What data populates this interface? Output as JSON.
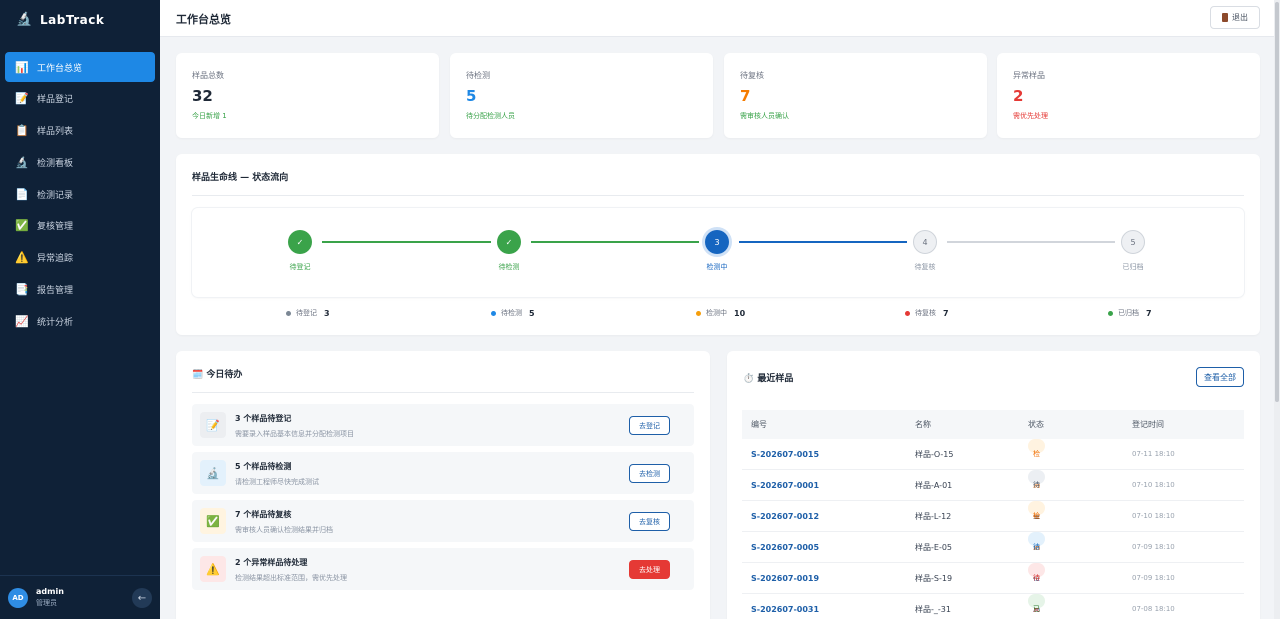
{
  "app": {
    "name": "LabTrack"
  },
  "sidebar": {
    "items": [
      {
        "icon": "📊",
        "label": "工作台总览",
        "active": true,
        "name": "sidebar-item-dashboard"
      },
      {
        "icon": "📝",
        "label": "样品登记",
        "active": false,
        "name": "sidebar-item-sample-register"
      },
      {
        "icon": "📋",
        "label": "样品列表",
        "active": false,
        "name": "sidebar-item-sample-list"
      },
      {
        "icon": "🔬",
        "label": "检测看板",
        "active": false,
        "name": "sidebar-item-test-board"
      },
      {
        "icon": "📄",
        "label": "检测记录",
        "active": false,
        "name": "sidebar-item-test-records"
      },
      {
        "icon": "✅",
        "label": "复核管理",
        "active": false,
        "name": "sidebar-item-review"
      },
      {
        "icon": "⚠️",
        "label": "异常追踪",
        "active": false,
        "name": "sidebar-item-anomaly"
      },
      {
        "icon": "📑",
        "label": "报告管理",
        "active": false,
        "name": "sidebar-item-reports"
      },
      {
        "icon": "📈",
        "label": "统计分析",
        "active": false,
        "name": "sidebar-item-stats"
      }
    ],
    "user": {
      "initials": "AD",
      "name": "admin",
      "role": "管理员",
      "collapse": "←"
    }
  },
  "header": {
    "title": "工作台总览",
    "logout": "退出"
  },
  "stats": [
    {
      "label": "样品总数",
      "value": "32",
      "sub": "今日新增 1",
      "color": "#1f2937",
      "subcolor": "#3aa34a"
    },
    {
      "label": "待检测",
      "value": "5",
      "sub": "待分配检测人员",
      "color": "#1e88e5",
      "subcolor": "#3aa34a"
    },
    {
      "label": "待复核",
      "value": "7",
      "sub": "需审核人员确认",
      "color": "#f57c00",
      "subcolor": "#3aa34a"
    },
    {
      "label": "异常样品",
      "value": "2",
      "sub": "需优先处理",
      "color": "#e53935",
      "subcolor": "#e53935"
    }
  ],
  "lifecycle": {
    "title": "样品生命线 — 状态流向",
    "steps": [
      {
        "mark": "✓",
        "label": "待登记",
        "state": "done"
      },
      {
        "mark": "✓",
        "label": "待检测",
        "state": "done"
      },
      {
        "mark": "3",
        "label": "检测中",
        "state": "current"
      },
      {
        "mark": "4",
        "label": "待复核",
        "state": "todo"
      },
      {
        "mark": "5",
        "label": "已归档",
        "state": "todo"
      }
    ],
    "legend": [
      {
        "label": "待登记",
        "count": "3",
        "color": "#7b8794"
      },
      {
        "label": "待检测",
        "count": "5",
        "color": "#1e88e5"
      },
      {
        "label": "检测中",
        "count": "10",
        "color": "#f59e0b"
      },
      {
        "label": "待复核",
        "count": "7",
        "color": "#e53935"
      },
      {
        "label": "已归档",
        "count": "7",
        "color": "#3aa34a"
      }
    ]
  },
  "todo": {
    "title": "今日待办",
    "icon": "🗓️",
    "items": [
      {
        "icon": "📝",
        "iconbg": "#eceef1",
        "title": "3 个样品待登记",
        "desc": "需要录入样品基本信息并分配检测项目",
        "action": "去登记",
        "style": "outline"
      },
      {
        "icon": "🔬",
        "iconbg": "#e3f1fc",
        "title": "5 个样品待检测",
        "desc": "请检测工程师尽快完成测试",
        "action": "去检测",
        "style": "outline"
      },
      {
        "icon": "✅",
        "iconbg": "#fff4e0",
        "title": "7 个样品待复核",
        "desc": "需审核人员确认检测结果并归档",
        "action": "去复核",
        "style": "outline"
      },
      {
        "icon": "⚠️",
        "iconbg": "#fde7e7",
        "title": "2 个异常样品待处理",
        "desc": "检测结果超出标准范围，需优先处理",
        "action": "去处理",
        "style": "danger"
      }
    ]
  },
  "recent": {
    "title": "最近样品",
    "icon": "⏱️",
    "view_all": "查看全部",
    "columns": [
      "编号",
      "名称",
      "状态",
      "登记时间"
    ],
    "rows": [
      {
        "code": "S-202607-0015",
        "name": "样品-O-15",
        "status": "检测中",
        "time": "07-11 18:10",
        "bg": "#fff3e0",
        "fg": "#ef6c00"
      },
      {
        "code": "S-202607-0001",
        "name": "样品-A-01",
        "status": "待登记",
        "time": "07-10 18:10",
        "bg": "#eceff3",
        "fg": "#4b5563"
      },
      {
        "code": "S-202607-0012",
        "name": "样品-L-12",
        "status": "检测中",
        "time": "07-10 18:10",
        "bg": "#fff3e0",
        "fg": "#ef6c00"
      },
      {
        "code": "S-202607-0005",
        "name": "样品-E-05",
        "status": "待检测",
        "time": "07-09 18:10",
        "bg": "#e3f1fc",
        "fg": "#1e6fc0"
      },
      {
        "code": "S-202607-0019",
        "name": "样品-S-19",
        "status": "待复核",
        "time": "07-09 18:10",
        "bg": "#fde7e7",
        "fg": "#d32f2f"
      },
      {
        "code": "S-202607-0031",
        "name": "样品-_-31",
        "status": "已归档",
        "time": "07-08 18:10",
        "bg": "#e6f4e8",
        "fg": "#2e7d32"
      }
    ]
  }
}
